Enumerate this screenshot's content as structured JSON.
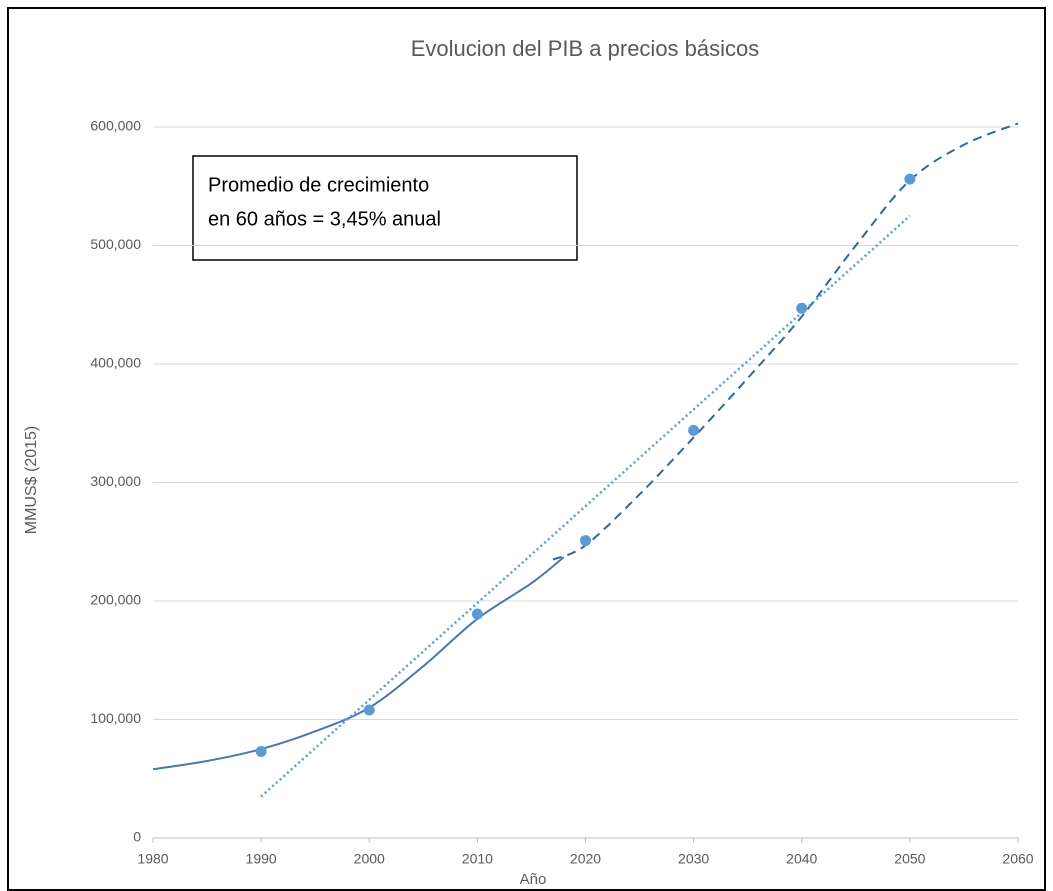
{
  "chart_data": {
    "type": "scatter",
    "title": "Evolucion del PIB a precios básicos",
    "xlabel": "Año",
    "ylabel": "MMUS$ (2015)",
    "annotation": [
      "Promedio de crecimiento",
      "en 60 años = 3,45% anual"
    ],
    "xlim": [
      1980,
      2060
    ],
    "xticks": [
      1980,
      1990,
      2000,
      2010,
      2020,
      2030,
      2040,
      2050,
      2060
    ],
    "ylim": [
      0,
      600000
    ],
    "yticks": [
      0,
      {
        "value": 100000,
        "label": "100,000"
      },
      {
        "value": 200000,
        "label": "200,000"
      },
      {
        "value": 300000,
        "label": "300,000"
      },
      {
        "value": 400000,
        "label": "400,000"
      },
      {
        "value": 500000,
        "label": "500,000"
      },
      {
        "value": 600000,
        "label": "600,000"
      }
    ],
    "grid": true,
    "series": [
      {
        "type": "scatter",
        "color": "#5b9bd5",
        "x": [
          1990,
          2000,
          2010,
          2020,
          2030,
          2040,
          2050
        ],
        "values": [
          73000,
          108000,
          189000,
          251000,
          344000,
          447000,
          556000
        ]
      },
      {
        "type": "line",
        "style": "solid",
        "color": "#4a78ad",
        "x": [
          1980,
          1985,
          1990,
          1995,
          2000,
          2005,
          2010,
          2015,
          2018
        ],
        "values": [
          58000,
          65000,
          75000,
          90000,
          110000,
          145000,
          185000,
          215000,
          237000
        ]
      },
      {
        "type": "line",
        "style": "dashed",
        "color": "#2f67a3",
        "x": [
          2017,
          2020,
          2025,
          2030,
          2035,
          2040,
          2045,
          2050,
          2055,
          2060
        ],
        "values": [
          235000,
          247000,
          290000,
          338000,
          388000,
          440000,
          500000,
          555000,
          585000,
          603000
        ]
      },
      {
        "type": "line",
        "style": "dotted",
        "color": "#5b9bd5",
        "x": [
          1990,
          2050
        ],
        "values": [
          35000,
          525000
        ]
      }
    ]
  }
}
